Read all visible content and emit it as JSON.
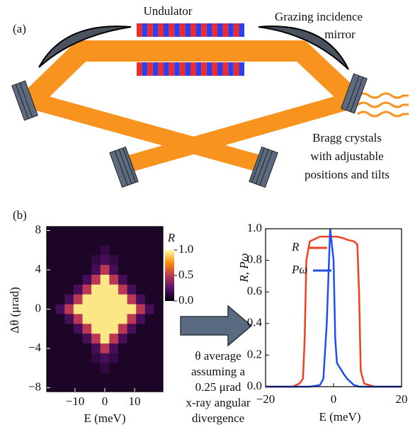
{
  "panel_a": {
    "label": "(a)",
    "undulator": "Undulator",
    "mirror_label": [
      "Grazing incidence",
      "mirror"
    ],
    "crystals_label": [
      "Bragg crystals",
      "with adjustable",
      "positions and tilts"
    ]
  },
  "panel_b": {
    "label": "(b)",
    "arrow_text": [
      "θ average",
      "assuming a",
      "0.25 μrad",
      "x-ray angular",
      "divergence"
    ]
  },
  "chart_data": [
    {
      "type": "heatmap",
      "xlabel": "E (meV)",
      "ylabel": "Δθ (μrad)",
      "x": [
        -18,
        -15,
        -12,
        -9,
        -6,
        -3,
        0,
        3,
        6,
        9,
        12,
        15,
        18
      ],
      "y": [
        8,
        7,
        6,
        5,
        4,
        3,
        2,
        1,
        0,
        -1,
        -2,
        -3,
        -4,
        -5,
        -6,
        -7,
        -8
      ],
      "z": [
        [
          0.08,
          0.08,
          0.08,
          0.08,
          0.08,
          0.08,
          0.08,
          0.08,
          0.08,
          0.08,
          0.08,
          0.08,
          0.08
        ],
        [
          0.08,
          0.08,
          0.08,
          0.08,
          0.08,
          0.08,
          0.08,
          0.08,
          0.08,
          0.08,
          0.08,
          0.08,
          0.08
        ],
        [
          0.08,
          0.08,
          0.08,
          0.08,
          0.08,
          0.08,
          0.15,
          0.08,
          0.08,
          0.08,
          0.08,
          0.08,
          0.08
        ],
        [
          0.08,
          0.08,
          0.08,
          0.08,
          0.08,
          0.15,
          0.2,
          0.15,
          0.08,
          0.08,
          0.08,
          0.08,
          0.08
        ],
        [
          0.08,
          0.08,
          0.08,
          0.08,
          0.08,
          0.2,
          0.5,
          0.2,
          0.08,
          0.08,
          0.08,
          0.08,
          0.08
        ],
        [
          0.08,
          0.08,
          0.08,
          0.08,
          0.2,
          0.5,
          0.95,
          0.5,
          0.2,
          0.08,
          0.08,
          0.08,
          0.08
        ],
        [
          0.08,
          0.08,
          0.08,
          0.2,
          0.5,
          0.95,
          0.95,
          0.95,
          0.5,
          0.2,
          0.08,
          0.08,
          0.08
        ],
        [
          0.08,
          0.08,
          0.2,
          0.5,
          0.95,
          0.95,
          0.95,
          0.95,
          0.95,
          0.5,
          0.2,
          0.08,
          0.08
        ],
        [
          0.08,
          0.2,
          0.5,
          0.95,
          0.95,
          0.95,
          0.95,
          0.95,
          0.95,
          0.95,
          0.5,
          0.2,
          0.08
        ],
        [
          0.08,
          0.08,
          0.2,
          0.5,
          0.95,
          0.95,
          0.95,
          0.95,
          0.95,
          0.5,
          0.2,
          0.08,
          0.08
        ],
        [
          0.08,
          0.08,
          0.08,
          0.2,
          0.5,
          0.95,
          0.95,
          0.95,
          0.5,
          0.2,
          0.08,
          0.08,
          0.08
        ],
        [
          0.08,
          0.08,
          0.08,
          0.08,
          0.2,
          0.5,
          0.95,
          0.5,
          0.2,
          0.08,
          0.08,
          0.08,
          0.08
        ],
        [
          0.08,
          0.08,
          0.08,
          0.08,
          0.08,
          0.2,
          0.5,
          0.2,
          0.08,
          0.08,
          0.08,
          0.08,
          0.08
        ],
        [
          0.08,
          0.08,
          0.08,
          0.08,
          0.08,
          0.15,
          0.2,
          0.15,
          0.08,
          0.08,
          0.08,
          0.08,
          0.08
        ],
        [
          0.08,
          0.08,
          0.08,
          0.08,
          0.08,
          0.08,
          0.15,
          0.08,
          0.08,
          0.08,
          0.08,
          0.08,
          0.08
        ],
        [
          0.08,
          0.08,
          0.08,
          0.08,
          0.08,
          0.08,
          0.08,
          0.08,
          0.08,
          0.08,
          0.08,
          0.08,
          0.08
        ],
        [
          0.08,
          0.08,
          0.08,
          0.08,
          0.08,
          0.08,
          0.08,
          0.08,
          0.08,
          0.08,
          0.08,
          0.08,
          0.08
        ]
      ],
      "xlim": [
        -19.5,
        19.5
      ],
      "ylim": [
        -8.4,
        8.4
      ],
      "xticks": [
        {
          "value": -10,
          "label": "−10"
        },
        0,
        10
      ],
      "yticks": [
        8,
        4,
        0,
        {
          "value": -4,
          "label": "−4"
        },
        {
          "value": -8,
          "label": "−8"
        }
      ],
      "colorbar": {
        "label": "R",
        "lim": [
          0,
          1
        ],
        "ticks": [
          {
            "value": 1,
            "label": "1.0"
          },
          {
            "value": 0.5,
            "label": "0.5"
          },
          {
            "value": 0,
            "label": "0.0"
          }
        ]
      }
    },
    {
      "type": "line",
      "xlabel": "E (meV)",
      "ylabel": "R, Pω",
      "x": [
        -20,
        -12,
        -10,
        -9,
        -8.5,
        -8,
        -7,
        -4,
        -3,
        -2,
        -1,
        0,
        0.5,
        1,
        3,
        4,
        6,
        7,
        7.5,
        8,
        9,
        12,
        20
      ],
      "series": [
        {
          "name": "R",
          "color": "#f2401f",
          "values": [
            0,
            0,
            0.02,
            0.05,
            0.3,
            0.8,
            0.92,
            0.95,
            0.95,
            0.95,
            0.95,
            0.95,
            0.95,
            0.95,
            0.94,
            0.93,
            0.92,
            0.9,
            0.6,
            0.1,
            0.02,
            0,
            0
          ]
        },
        {
          "name": "Pω",
          "color": "#1f4ff2",
          "values": [
            0,
            0,
            0,
            0,
            0,
            0,
            0,
            0.01,
            0.05,
            0.4,
            1.0,
            0.8,
            0.3,
            0.15,
            0.08,
            0.05,
            0.01,
            0.005,
            0,
            0,
            0,
            0,
            0
          ]
        }
      ],
      "xlim": [
        -20,
        20
      ],
      "ylim": [
        0,
        1
      ],
      "xticks": [
        {
          "value": -20,
          "label": "−20"
        },
        0,
        20
      ],
      "yticks": [
        {
          "value": 0,
          "label": "0.0"
        },
        {
          "value": 0.2,
          "label": "0.2"
        },
        {
          "value": 0.4,
          "label": "0.4"
        },
        {
          "value": 0.6,
          "label": "0.6"
        },
        {
          "value": 0.8,
          "label": "0.8"
        },
        {
          "value": 1,
          "label": "1.0"
        }
      ]
    }
  ]
}
